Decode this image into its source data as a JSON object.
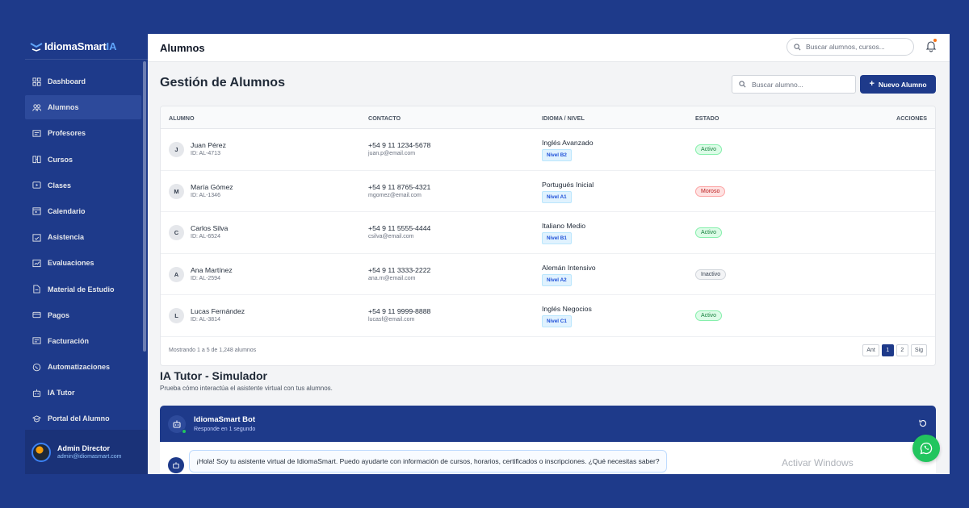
{
  "brand": {
    "name": "IdiomaSmart",
    "accent": "IA"
  },
  "sidebar": {
    "items": [
      {
        "label": "Dashboard",
        "icon": "grid-icon"
      },
      {
        "label": "Alumnos",
        "icon": "users-icon"
      },
      {
        "label": "Profesores",
        "icon": "id-card-icon"
      },
      {
        "label": "Cursos",
        "icon": "book-icon"
      },
      {
        "label": "Clases",
        "icon": "video-icon"
      },
      {
        "label": "Calendario",
        "icon": "calendar-icon"
      },
      {
        "label": "Asistencia",
        "icon": "check-calendar-icon"
      },
      {
        "label": "Evaluaciones",
        "icon": "chart-icon"
      },
      {
        "label": "Material de Estudio",
        "icon": "file-icon"
      },
      {
        "label": "Pagos",
        "icon": "card-icon"
      },
      {
        "label": "Facturación",
        "icon": "receipt-icon"
      },
      {
        "label": "Automatizaciones",
        "icon": "whatsapp-icon"
      },
      {
        "label": "IA Tutor",
        "icon": "robot-icon"
      },
      {
        "label": "Portal del Alumno",
        "icon": "graduation-icon"
      }
    ],
    "active_index": 1,
    "admin": {
      "name": "Admin Director",
      "email": "admin@idiomasmart.com"
    }
  },
  "topbar": {
    "title": "Alumnos",
    "search_placeholder": "Buscar alumnos, cursos..."
  },
  "page": {
    "title": "Gestión de Alumnos",
    "search_placeholder": "Buscar alumno...",
    "new_button": "Nuevo Alumno"
  },
  "table": {
    "headers": {
      "student": "ALUMNO",
      "contact": "CONTACTO",
      "language": "IDIOMA / NIVEL",
      "status": "ESTADO",
      "actions": "ACCIONES"
    },
    "rows": [
      {
        "initial": "J",
        "name": "Juan Pérez",
        "id": "ID: AL-4713",
        "phone": "+54 9 11 1234-5678",
        "email": "juan.p@email.com",
        "language": "Inglés Avanzado",
        "level": "Nivel B2",
        "status": "Activo",
        "status_kind": "ok"
      },
      {
        "initial": "M",
        "name": "María Gómez",
        "id": "ID: AL-1346",
        "phone": "+54 9 11 8765-4321",
        "email": "mgomez@email.com",
        "language": "Portugués Inicial",
        "level": "Nivel A1",
        "status": "Moroso",
        "status_kind": "bad"
      },
      {
        "initial": "C",
        "name": "Carlos Silva",
        "id": "ID: AL-6524",
        "phone": "+54 9 11 5555-4444",
        "email": "csilva@email.com",
        "language": "Italiano Medio",
        "level": "Nivel B1",
        "status": "Activo",
        "status_kind": "ok"
      },
      {
        "initial": "A",
        "name": "Ana Martínez",
        "id": "ID: AL-2594",
        "phone": "+54 9 11 3333-2222",
        "email": "ana.m@email.com",
        "language": "Alemán Intensivo",
        "level": "Nivel A2",
        "status": "Inactivo",
        "status_kind": "off"
      },
      {
        "initial": "L",
        "name": "Lucas Fernández",
        "id": "ID: AL-3814",
        "phone": "+54 9 11 9999-8888",
        "email": "lucasf@email.com",
        "language": "Inglés Negocios",
        "level": "Nivel C1",
        "status": "Activo",
        "status_kind": "ok"
      }
    ],
    "footer_text": "Mostrando 1 a 5 de 1,248 alumnos",
    "pager": {
      "prev": "Ant",
      "pages": [
        "1",
        "2"
      ],
      "current": "1",
      "next": "Sig"
    }
  },
  "ia_tutor": {
    "title": "IA Tutor - Simulador",
    "subtitle": "Prueba cómo interactúa el asistente virtual con tus alumnos.",
    "bot_name": "IdiomaSmart Bot",
    "bot_response": "Responde en 1 segundo",
    "message": "¡Hola! Soy tu asistente virtual de IdiomaSmart. Puedo ayudarte con información de cursos, horarios, certificados o inscripciones. ¿Qué necesitas saber?"
  },
  "watermark": "Activar Windows",
  "colors": {
    "primary": "#1e3a8a",
    "accent": "#60a5fa",
    "active": "#15803d",
    "overdue": "#b91c1c",
    "whatsapp": "#22c55e"
  }
}
